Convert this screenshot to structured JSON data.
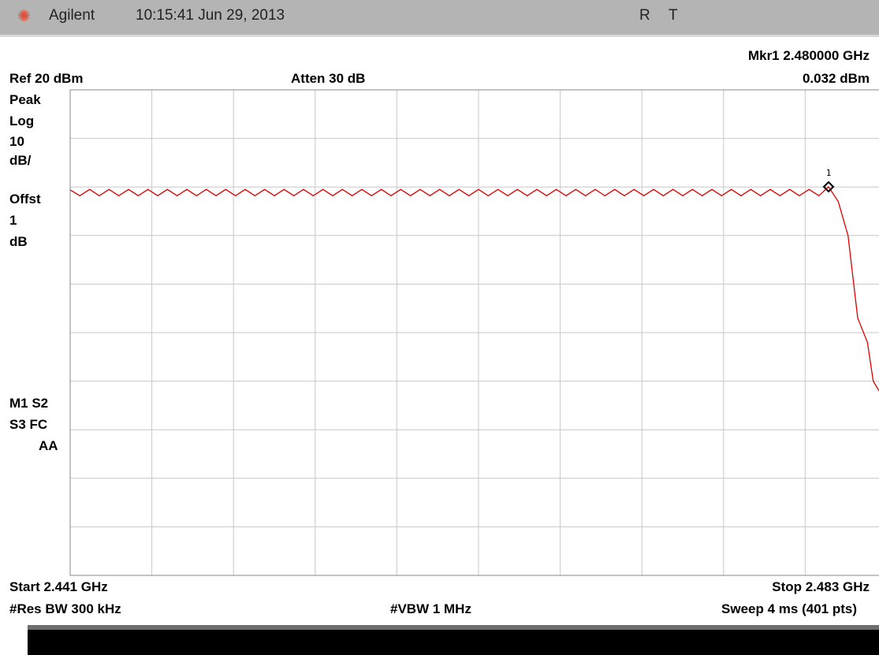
{
  "header": {
    "brand": "Agilent",
    "timestamp": "10:15:41  Jun 29, 2013",
    "flags": [
      "R",
      "T"
    ]
  },
  "readout": {
    "marker_label": "Mkr1  2.480000 GHz",
    "marker_value": "0.032 dBm",
    "ref": "Ref 20 dBm",
    "atten": "Atten 30 dB"
  },
  "left_panel": {
    "lines": [
      "Peak",
      "Log",
      "10",
      "dB/",
      "Offst",
      "1",
      "dB"
    ],
    "status": [
      "M1  S2",
      "S3  FC",
      "AA"
    ]
  },
  "footer": {
    "start": "Start 2.441 GHz",
    "stop": "Stop 2.483 GHz",
    "rbw": "#Res BW 300 kHz",
    "vbw": "#VBW 1 MHz",
    "sweep": "Sweep 4 ms (401 pts)"
  },
  "chart_data": {
    "type": "line",
    "xlim": [
      2.441,
      2.483
    ],
    "ylim": [
      -80,
      20
    ],
    "x_unit": "GHz",
    "y_unit": "dBm",
    "grid": true,
    "marker": {
      "label": "1",
      "x": 2.48,
      "y": 0.032
    },
    "series": [
      {
        "color": "#e00000",
        "points": [
          [
            2.441,
            -0.6
          ],
          [
            2.4415,
            -1.8
          ],
          [
            2.442,
            -0.5
          ],
          [
            2.4425,
            -1.8
          ],
          [
            2.443,
            -0.5
          ],
          [
            2.4435,
            -1.8
          ],
          [
            2.444,
            -0.5
          ],
          [
            2.4445,
            -1.8
          ],
          [
            2.445,
            -0.5
          ],
          [
            2.4455,
            -1.8
          ],
          [
            2.446,
            -0.5
          ],
          [
            2.4465,
            -1.8
          ],
          [
            2.447,
            -0.5
          ],
          [
            2.4475,
            -1.8
          ],
          [
            2.448,
            -0.5
          ],
          [
            2.4485,
            -1.8
          ],
          [
            2.449,
            -0.5
          ],
          [
            2.4495,
            -1.8
          ],
          [
            2.45,
            -0.5
          ],
          [
            2.4505,
            -1.8
          ],
          [
            2.451,
            -0.5
          ],
          [
            2.4515,
            -1.8
          ],
          [
            2.452,
            -0.5
          ],
          [
            2.4525,
            -1.8
          ],
          [
            2.453,
            -0.5
          ],
          [
            2.4535,
            -1.8
          ],
          [
            2.454,
            -0.5
          ],
          [
            2.4545,
            -1.8
          ],
          [
            2.455,
            -0.5
          ],
          [
            2.4555,
            -1.8
          ],
          [
            2.456,
            -0.5
          ],
          [
            2.4565,
            -1.8
          ],
          [
            2.457,
            -0.5
          ],
          [
            2.4575,
            -1.8
          ],
          [
            2.458,
            -0.5
          ],
          [
            2.4585,
            -1.8
          ],
          [
            2.459,
            -0.5
          ],
          [
            2.4595,
            -1.8
          ],
          [
            2.46,
            -0.5
          ],
          [
            2.4605,
            -1.8
          ],
          [
            2.461,
            -0.5
          ],
          [
            2.4615,
            -1.8
          ],
          [
            2.462,
            -0.5
          ],
          [
            2.4625,
            -1.8
          ],
          [
            2.463,
            -0.5
          ],
          [
            2.4635,
            -1.8
          ],
          [
            2.464,
            -0.5
          ],
          [
            2.4645,
            -1.8
          ],
          [
            2.465,
            -0.5
          ],
          [
            2.4655,
            -1.8
          ],
          [
            2.466,
            -0.5
          ],
          [
            2.4665,
            -1.8
          ],
          [
            2.467,
            -0.5
          ],
          [
            2.4675,
            -1.8
          ],
          [
            2.468,
            -0.5
          ],
          [
            2.4685,
            -1.8
          ],
          [
            2.469,
            -0.5
          ],
          [
            2.4695,
            -1.8
          ],
          [
            2.47,
            -0.5
          ],
          [
            2.4705,
            -1.8
          ],
          [
            2.471,
            -0.5
          ],
          [
            2.4715,
            -1.8
          ],
          [
            2.472,
            -0.5
          ],
          [
            2.4725,
            -1.8
          ],
          [
            2.473,
            -0.5
          ],
          [
            2.4735,
            -1.8
          ],
          [
            2.474,
            -0.5
          ],
          [
            2.4745,
            -1.8
          ],
          [
            2.475,
            -0.5
          ],
          [
            2.4755,
            -1.8
          ],
          [
            2.476,
            -0.5
          ],
          [
            2.4765,
            -1.8
          ],
          [
            2.477,
            -0.5
          ],
          [
            2.4775,
            -1.8
          ],
          [
            2.478,
            -0.5
          ],
          [
            2.4785,
            -1.8
          ],
          [
            2.479,
            -0.5
          ],
          [
            2.4795,
            -1.8
          ],
          [
            2.48,
            0.03
          ],
          [
            2.4805,
            -3
          ],
          [
            2.481,
            -10
          ],
          [
            2.4815,
            -27
          ],
          [
            2.482,
            -32
          ],
          [
            2.4823,
            -40
          ],
          [
            2.4826,
            -42
          ],
          [
            2.483,
            -43
          ]
        ]
      }
    ]
  }
}
